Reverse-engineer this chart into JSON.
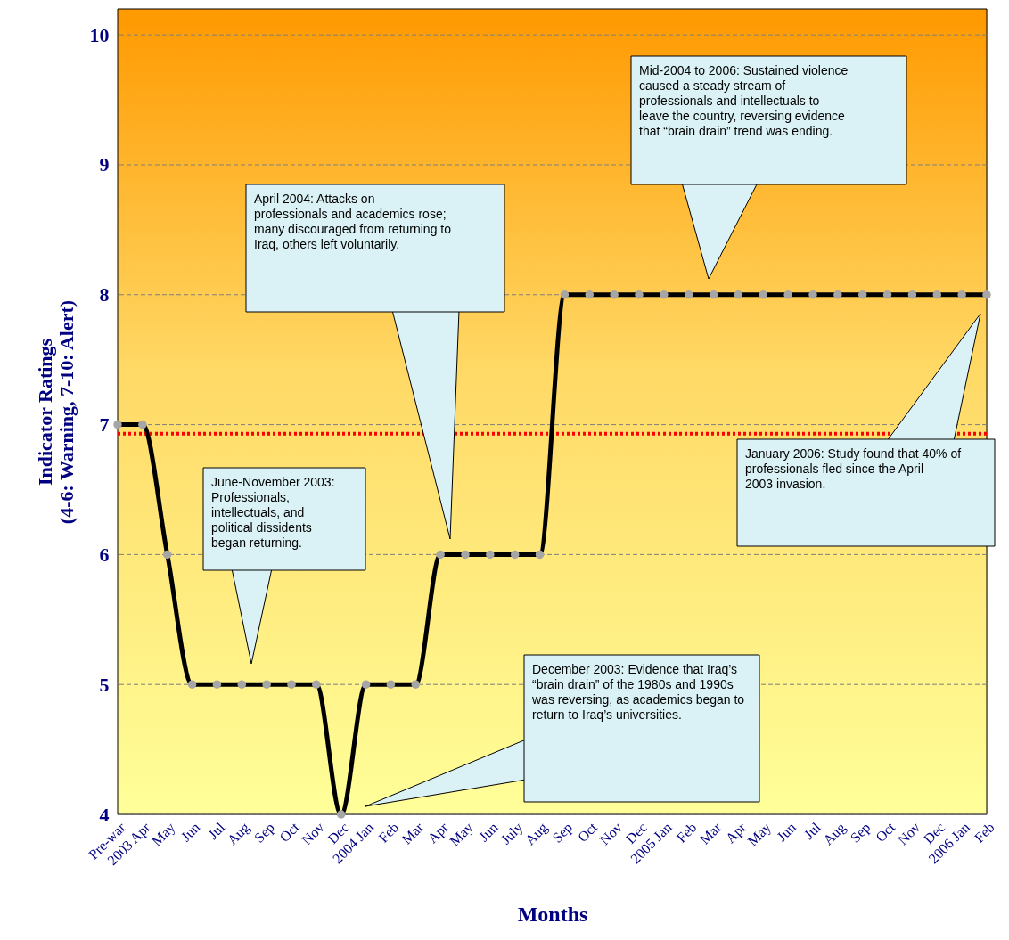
{
  "chart_data": {
    "type": "line",
    "xlabel": "Months",
    "ylabel": "Indicator Ratings\n(4-6: Warning, 7-10: Alert)",
    "categories": [
      "Pre-war",
      "2003 Apr",
      "May",
      "Jun",
      "Jul",
      "Aug",
      "Sep",
      "Oct",
      "Nov",
      "Dec",
      "2004 Jan",
      "Feb",
      "Mar",
      "Apr",
      "May",
      "Jun",
      "July",
      "Aug",
      "Sep",
      "Oct",
      "Nov",
      "Dec",
      "2005 Jan",
      "Feb",
      "Mar",
      "Apr",
      "May",
      "Jun",
      "Jul",
      "Aug",
      "Sep",
      "Oct",
      "Nov",
      "Dec",
      "2006 Jan",
      "Feb"
    ],
    "series": [
      {
        "color": "#000000",
        "values": [
          7,
          7,
          6,
          5,
          5,
          5,
          5,
          5,
          5,
          4,
          5,
          5,
          5,
          6,
          6,
          6,
          6,
          6,
          8,
          8,
          8,
          8,
          8,
          8,
          8,
          8,
          8,
          8,
          8,
          8,
          8,
          8,
          8,
          8,
          8,
          8
        ]
      }
    ],
    "ylim": [
      4,
      10.2
    ],
    "yticks": [
      4,
      5,
      6,
      7,
      8,
      9,
      10
    ],
    "grid": "y",
    "marker": "circle",
    "line_style": "solid",
    "ref_lines": [
      {
        "axis": "y",
        "value": 6.93,
        "color": "#ff0000",
        "line_style": "dotted"
      }
    ],
    "annotations": [
      "June-November 2003: Professionals, intellectuals, and political dissidents began returning.",
      "April 2004: Attacks on professionals and academics rose; many discouraged from returning to Iraq, others left voluntarily.",
      "December 2003: Evidence that Iraq’s “brain drain” of the 1980s and 1990s was reversing, as academics began to return to Iraq’s universities.",
      "Mid-2004 to 2006: Sustained violence caused a steady stream of professionals and intellectuals to leave the country, reversing evidence that “brain drain” trend was ending.",
      "January 2006: Study found that 40% of professionals fled since the April 2003 invasion."
    ]
  }
}
